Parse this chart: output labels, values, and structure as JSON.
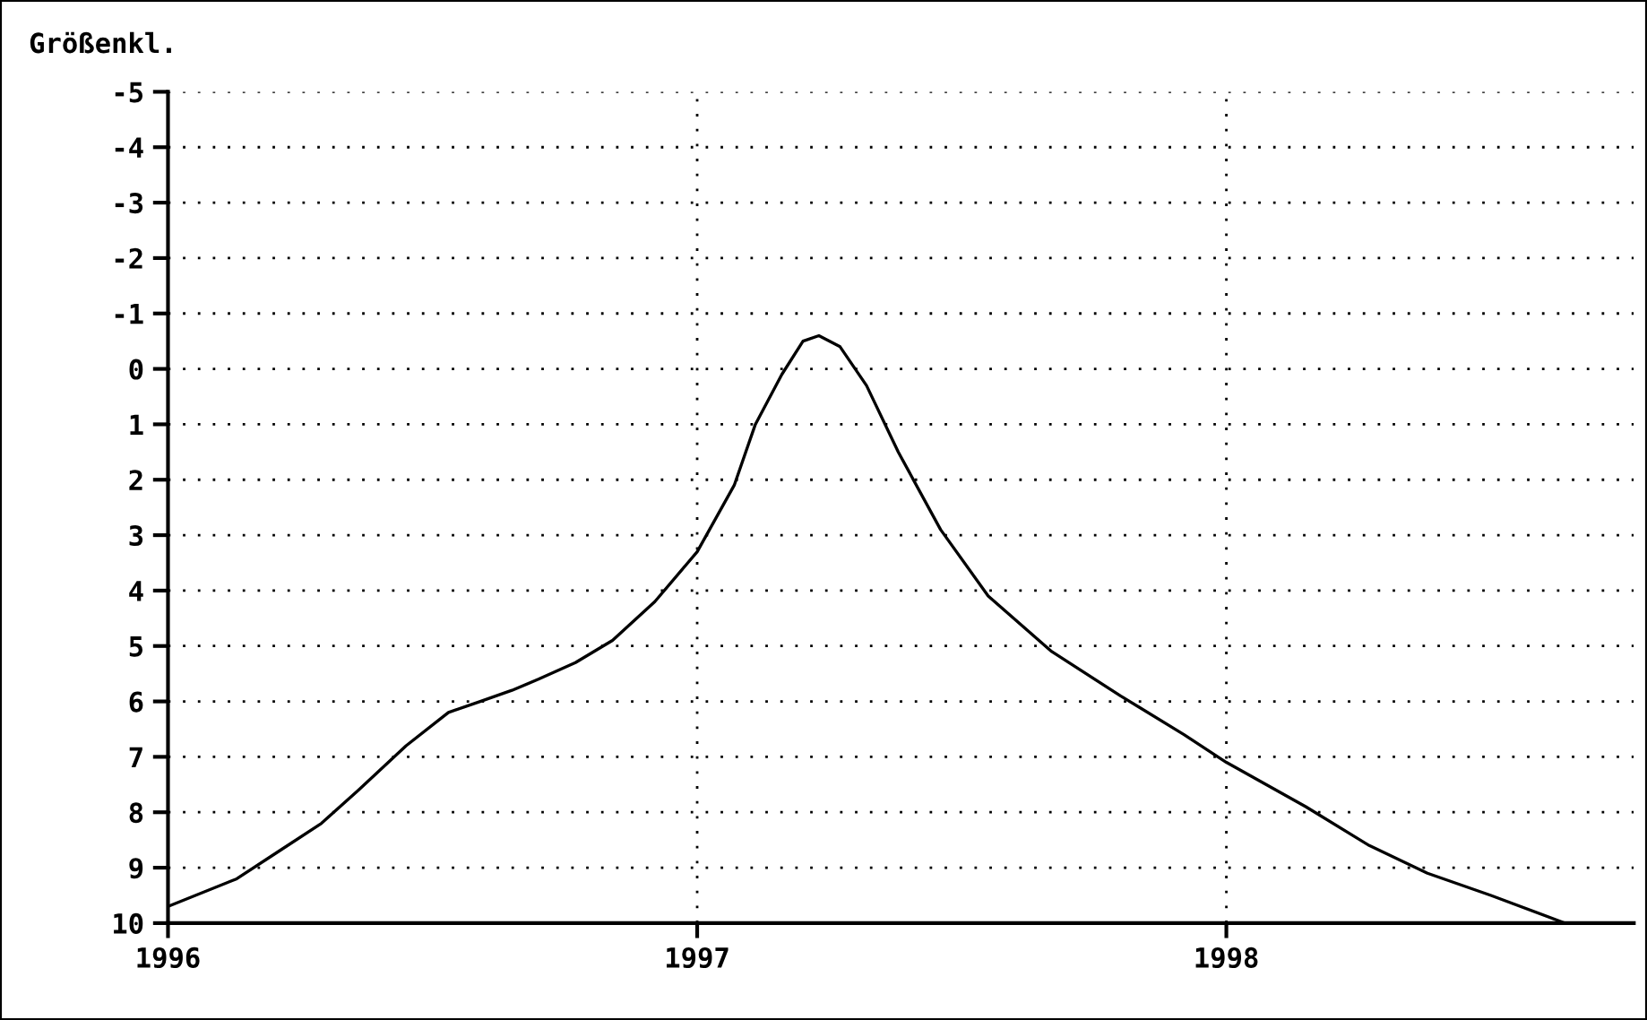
{
  "chart_data": {
    "type": "line",
    "ylabel": "Größenkl.",
    "series": [
      {
        "color": "#000000",
        "x": [
          1996.0,
          1996.13,
          1996.21,
          1996.29,
          1996.36,
          1996.45,
          1996.53,
          1996.59,
          1996.65,
          1996.7,
          1996.77,
          1996.84,
          1996.92,
          1997.0,
          1997.07,
          1997.11,
          1997.16,
          1997.2,
          1997.23,
          1997.27,
          1997.32,
          1997.38,
          1997.46,
          1997.55,
          1997.67,
          1997.8,
          1997.92,
          1998.0,
          1998.15,
          1998.27,
          1998.38,
          1998.5,
          1998.64
        ],
        "values": [
          9.7,
          9.2,
          8.7,
          8.2,
          7.6,
          6.8,
          6.2,
          6.0,
          5.8,
          5.6,
          5.3,
          4.9,
          4.2,
          3.3,
          2.1,
          1.0,
          0.1,
          -0.5,
          -0.6,
          -0.4,
          0.3,
          1.5,
          2.9,
          4.1,
          5.1,
          5.9,
          6.6,
          7.1,
          7.9,
          8.6,
          9.1,
          9.5,
          10.0
        ]
      }
    ],
    "xlim": [
      1996,
      1998.77
    ],
    "xticks": [
      1996,
      1997,
      1998
    ],
    "ylim": [
      10,
      -5
    ],
    "yticks": [
      -5,
      -4,
      -3,
      -2,
      -1,
      0,
      1,
      2,
      3,
      4,
      5,
      6,
      7,
      8,
      9,
      10
    ],
    "grid": true,
    "line_style": "solid",
    "marker": "none"
  }
}
